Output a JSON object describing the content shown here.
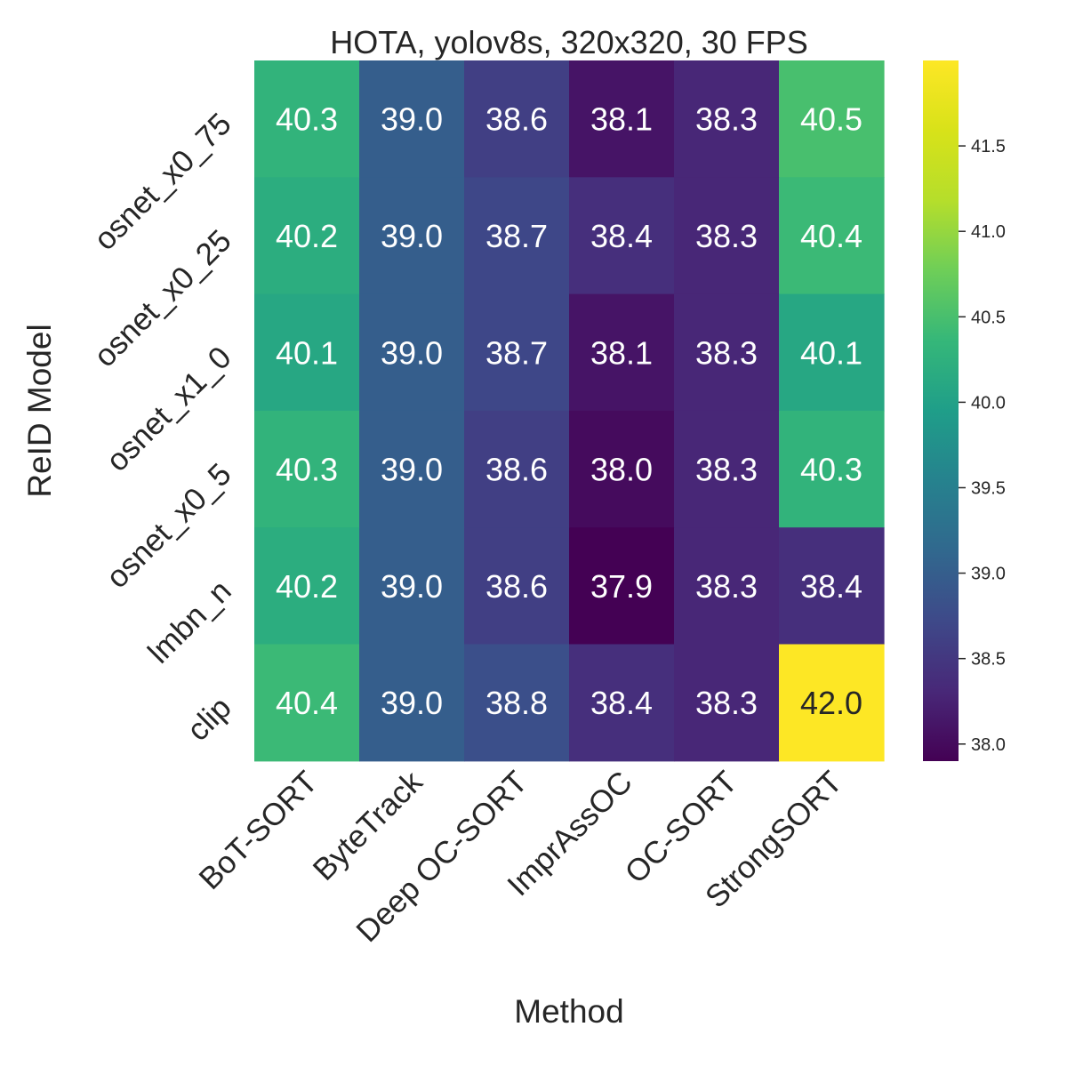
{
  "chart_data": {
    "type": "heatmap",
    "title": "HOTA, yolov8s, 320x320, 30 FPS",
    "xlabel": "Method",
    "ylabel": "ReID Model",
    "x_categories": [
      "BoT-SORT",
      "ByteTrack",
      "Deep OC-SORT",
      "ImprAssOC",
      "OC-SORT",
      "StrongSORT"
    ],
    "y_categories": [
      "osnet_x0_75",
      "osnet_x0_25",
      "osnet_x1_0",
      "osnet_x0_5",
      "lmbn_n",
      "clip"
    ],
    "values": [
      [
        40.3,
        39.0,
        38.6,
        38.1,
        38.3,
        40.5
      ],
      [
        40.2,
        39.0,
        38.7,
        38.4,
        38.3,
        40.4
      ],
      [
        40.1,
        39.0,
        38.7,
        38.1,
        38.3,
        40.1
      ],
      [
        40.3,
        39.0,
        38.6,
        38.0,
        38.3,
        40.3
      ],
      [
        40.2,
        39.0,
        38.6,
        37.9,
        38.3,
        38.4
      ],
      [
        40.4,
        39.0,
        38.8,
        38.4,
        38.3,
        42.0
      ]
    ],
    "value_format": "0.0",
    "colormap": "viridis",
    "colorbar": {
      "range": [
        37.9,
        42.0
      ],
      "ticks": [
        "38.0",
        "38.5",
        "39.0",
        "39.5",
        "40.0",
        "40.5",
        "41.0",
        "41.5"
      ]
    }
  }
}
